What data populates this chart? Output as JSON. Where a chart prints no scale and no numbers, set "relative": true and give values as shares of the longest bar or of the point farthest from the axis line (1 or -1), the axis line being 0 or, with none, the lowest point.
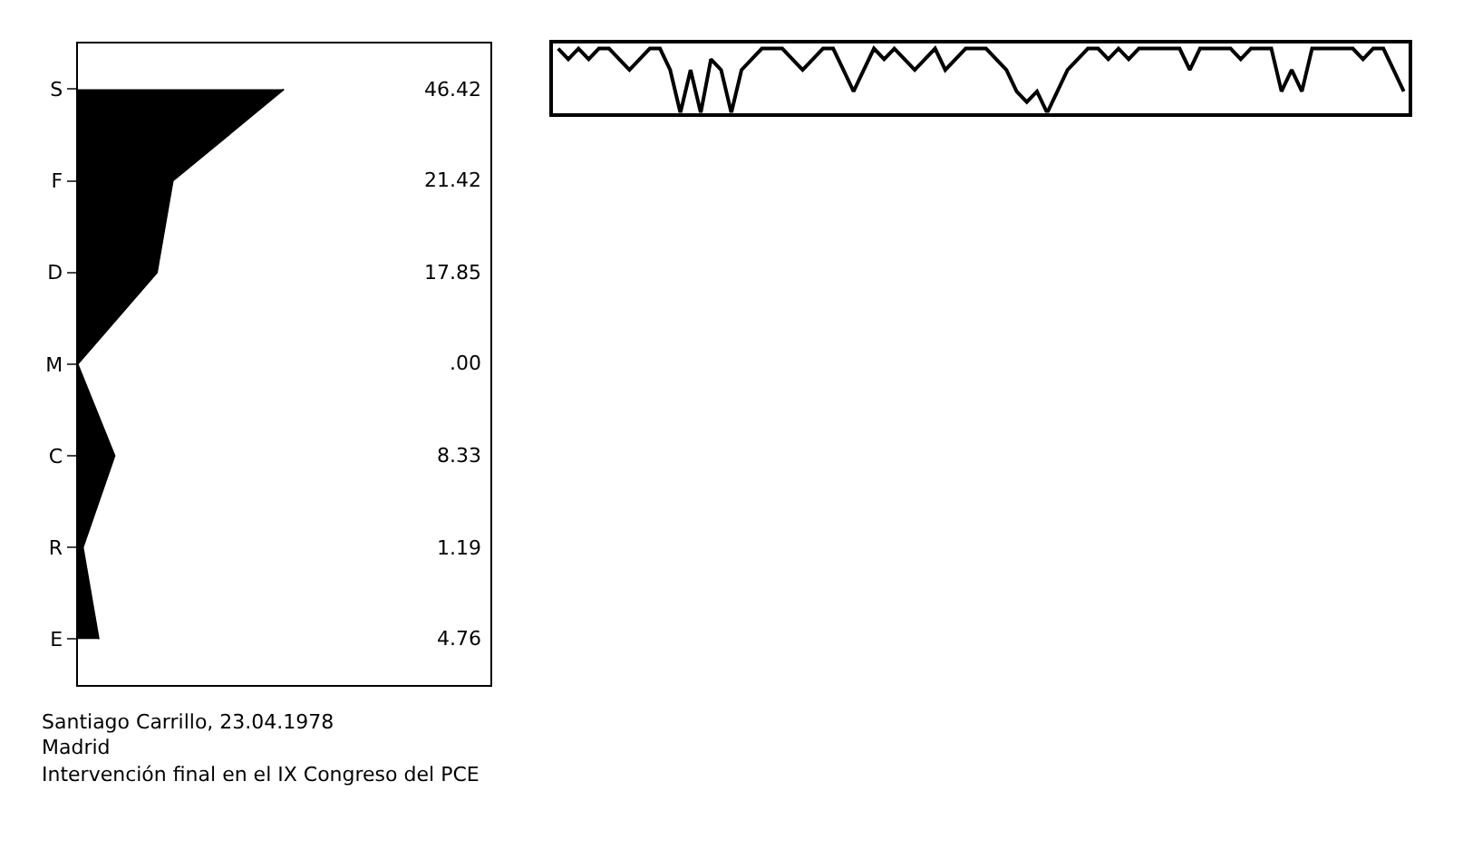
{
  "chart_data": [
    {
      "type": "area",
      "orientation": "horizontal",
      "categories": [
        "S",
        "F",
        "D",
        "M",
        "C",
        "R",
        "E"
      ],
      "values": [
        46.42,
        21.42,
        17.85,
        0,
        8.33,
        1.19,
        4.76
      ],
      "value_labels": [
        "46.42",
        "21.42",
        "17.85",
        ".00",
        "8.33",
        "1.19",
        "4.76"
      ],
      "color": "#000000",
      "marker": "none",
      "annotations": [
        "Santiago Carrillo, 23.04.1978",
        "Madrid",
        "Intervención final en el IX Congreso del PCE"
      ]
    },
    {
      "type": "line",
      "relative": true,
      "color": "#000000",
      "line_style": "solid",
      "tick_labels": false,
      "categories": [
        null,
        null,
        null,
        null,
        null,
        null,
        null,
        null,
        null,
        null,
        null,
        null,
        null,
        null,
        null,
        null,
        null,
        null,
        null,
        null,
        null,
        null,
        null,
        null,
        null,
        null,
        null,
        null,
        null,
        null,
        null,
        null,
        null,
        null,
        null,
        null,
        null,
        null,
        null,
        null,
        null,
        null,
        null,
        null,
        null,
        null,
        null,
        null,
        null,
        null,
        null,
        null,
        null,
        null,
        null,
        null,
        null,
        null,
        null,
        null,
        null,
        null,
        null,
        null,
        null,
        null,
        null,
        null,
        null,
        null,
        null,
        null,
        null,
        null,
        null,
        null,
        null,
        null,
        null,
        null,
        null,
        null,
        null,
        null
      ],
      "values": [
        1,
        0.833,
        1,
        0.833,
        1,
        1,
        0.833,
        0.667,
        0.833,
        1,
        1,
        0.667,
        0,
        0.667,
        0,
        0.833,
        0.667,
        0,
        0.667,
        0.833,
        1,
        1,
        1,
        0.833,
        0.667,
        0.833,
        1,
        1,
        0.667,
        0.333,
        0.667,
        1,
        0.833,
        1,
        0.833,
        0.667,
        0.833,
        1,
        0.667,
        0.833,
        1,
        1,
        1,
        0.833,
        0.667,
        0.333,
        0.167,
        0.333,
        0,
        0.333,
        0.667,
        0.833,
        1,
        1,
        0.833,
        1,
        0.833,
        1,
        1,
        1,
        1,
        1,
        0.667,
        1,
        1,
        1,
        1,
        0.833,
        1,
        1,
        1,
        0.333,
        0.667,
        0.333,
        1,
        1,
        1,
        1,
        1,
        0.833,
        1,
        1,
        0.667,
        0.333
      ]
    }
  ]
}
